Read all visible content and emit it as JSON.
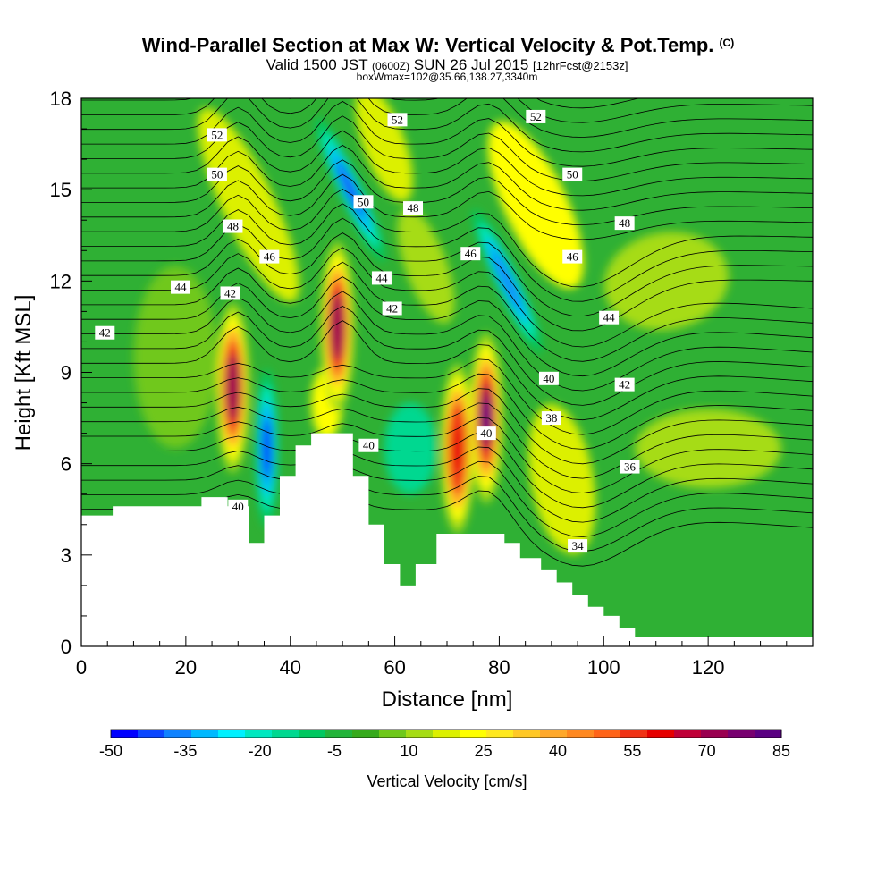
{
  "chart_data": {
    "type": "heatmap",
    "title": "Wind-Parallel Section at Max W: Vertical Velocity & Pot.Temp.",
    "title_mark": "(C)",
    "subtitle_parts": [
      "Valid 1500 JST ",
      "(0600Z)",
      " SUN 26 Jul 2015 ",
      "[12hrFcst@2153z]"
    ],
    "subtitle2": "boxWmax=102@35.66,138.27,3340m",
    "xlabel": "Distance [nm]",
    "ylabel": "Height [Kft MSL]",
    "xlim": [
      0,
      140
    ],
    "ylim": [
      0,
      18
    ],
    "x_ticks": [
      0,
      20,
      40,
      60,
      80,
      100,
      120
    ],
    "y_ticks": [
      0,
      3,
      6,
      9,
      12,
      15,
      18
    ],
    "colorbar": {
      "label": "Vertical Velocity [cm/s]",
      "tick_labels": [
        "-50",
        "-35",
        "-20",
        "-5",
        "10",
        "25",
        "40",
        "55",
        "70",
        "85"
      ],
      "range": [
        -50,
        85
      ],
      "colors": [
        "#0000ff",
        "#0a46ff",
        "#0f82ff",
        "#00b9ff",
        "#00f0ff",
        "#00e8c0",
        "#00d890",
        "#00c860",
        "#22b43a",
        "#36aa1c",
        "#6fc81a",
        "#a6dc14",
        "#dcf000",
        "#ffff00",
        "#ffe81e",
        "#ffc825",
        "#ffa82a",
        "#ff8820",
        "#ff6418",
        "#f03214",
        "#e60000",
        "#c00038",
        "#9a0050",
        "#780070",
        "#5a0082"
      ]
    },
    "updraft_cores": [
      {
        "x": 29,
        "z": 8.5,
        "w": 70
      },
      {
        "x": 49,
        "z": 10.5,
        "w": 70
      },
      {
        "x": 72,
        "z": 6.5,
        "w": 60
      },
      {
        "x": 77.5,
        "z": 7.5,
        "w": 85
      }
    ],
    "downdraft_cores": [
      {
        "x": 35.5,
        "z": 6.5,
        "w": -45
      },
      {
        "x": 51.5,
        "z": 15,
        "w": -40
      },
      {
        "x": 81.5,
        "z": 12,
        "w": -35
      }
    ],
    "contour_labels": [
      {
        "text": "52",
        "x": 26,
        "z": 16.8
      },
      {
        "text": "50",
        "x": 26,
        "z": 15.5
      },
      {
        "text": "48",
        "x": 29,
        "z": 13.8
      },
      {
        "text": "46",
        "x": 36,
        "z": 12.8
      },
      {
        "text": "44",
        "x": 19,
        "z": 11.8
      },
      {
        "text": "42",
        "x": 28.5,
        "z": 11.6
      },
      {
        "text": "42",
        "x": 4.5,
        "z": 10.3
      },
      {
        "text": "52",
        "x": 60.5,
        "z": 17.3
      },
      {
        "text": "50",
        "x": 54,
        "z": 14.6
      },
      {
        "text": "48",
        "x": 63.5,
        "z": 14.4
      },
      {
        "text": "44",
        "x": 57.5,
        "z": 12.1
      },
      {
        "text": "42",
        "x": 59.5,
        "z": 11.1
      },
      {
        "text": "46",
        "x": 74.5,
        "z": 12.9
      },
      {
        "text": "40",
        "x": 55,
        "z": 6.6
      },
      {
        "text": "40",
        "x": 77.5,
        "z": 7.0
      },
      {
        "text": "52",
        "x": 87,
        "z": 17.4
      },
      {
        "text": "50",
        "x": 94,
        "z": 15.5
      },
      {
        "text": "48",
        "x": 104,
        "z": 13.9
      },
      {
        "text": "46",
        "x": 94,
        "z": 12.8
      },
      {
        "text": "44",
        "x": 101,
        "z": 10.8
      },
      {
        "text": "40",
        "x": 89.5,
        "z": 8.8
      },
      {
        "text": "42",
        "x": 104,
        "z": 8.6
      },
      {
        "text": "38",
        "x": 90,
        "z": 7.5
      },
      {
        "text": "36",
        "x": 105,
        "z": 5.9
      },
      {
        "text": "34",
        "x": 95,
        "z": 3.3
      },
      {
        "text": "40",
        "x": 30,
        "z": 4.6
      }
    ],
    "terrain": [
      [
        0,
        4.3
      ],
      [
        6,
        4.3
      ],
      [
        6,
        4.6
      ],
      [
        23,
        4.6
      ],
      [
        23,
        4.9
      ],
      [
        28,
        4.9
      ],
      [
        28,
        4.6
      ],
      [
        32,
        4.6
      ],
      [
        32,
        3.4
      ],
      [
        35,
        3.4
      ],
      [
        35,
        4.3
      ],
      [
        38,
        4.3
      ],
      [
        38,
        5.6
      ],
      [
        41,
        5.6
      ],
      [
        41,
        6.6
      ],
      [
        44,
        6.6
      ],
      [
        44,
        7.0
      ],
      [
        47,
        7.0
      ],
      [
        47,
        7.0
      ],
      [
        52,
        7.0
      ],
      [
        52,
        5.6
      ],
      [
        55,
        5.6
      ],
      [
        55,
        4.0
      ],
      [
        58,
        4.0
      ],
      [
        58,
        2.7
      ],
      [
        61,
        2.7
      ],
      [
        61,
        2.0
      ],
      [
        64,
        2.0
      ],
      [
        64,
        2.7
      ],
      [
        68,
        2.7
      ],
      [
        68,
        3.7
      ],
      [
        78,
        3.7
      ],
      [
        78,
        3.7
      ],
      [
        81,
        3.7
      ],
      [
        81,
        3.4
      ],
      [
        84,
        3.4
      ],
      [
        84,
        2.9
      ],
      [
        88,
        2.9
      ],
      [
        88,
        2.5
      ],
      [
        91,
        2.5
      ],
      [
        91,
        2.1
      ],
      [
        94,
        2.1
      ],
      [
        94,
        1.7
      ],
      [
        97,
        1.7
      ],
      [
        97,
        1.3
      ],
      [
        100,
        1.3
      ],
      [
        100,
        1.0
      ],
      [
        103,
        1.0
      ],
      [
        103,
        0.6
      ],
      [
        106,
        0.6
      ],
      [
        106,
        0.3
      ],
      [
        140,
        0.3
      ]
    ]
  }
}
